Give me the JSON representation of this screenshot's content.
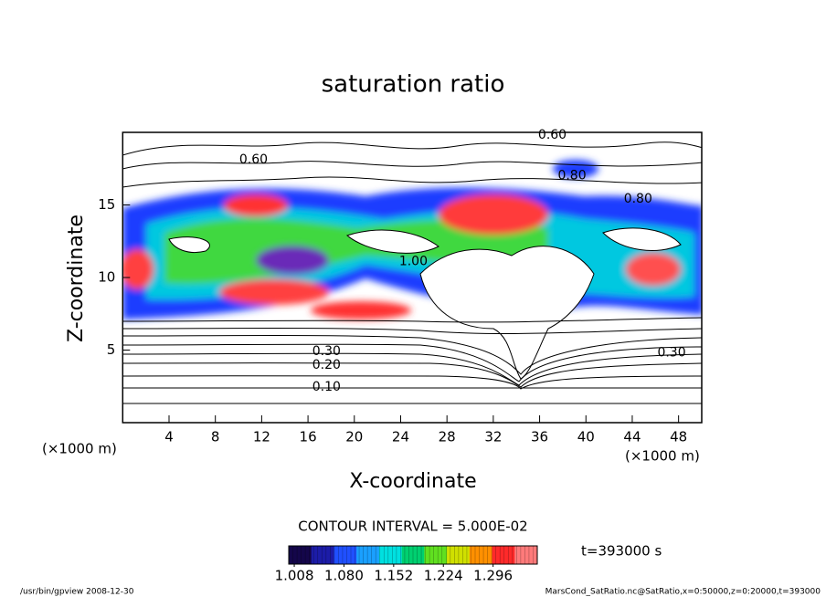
{
  "chart_data": {
    "type": "contour",
    "title": "saturation ratio",
    "x_label": "X-coordinate",
    "y_label": "Z-coordinate",
    "x_unit": "(×1000 m)",
    "y_unit": "(×1000 m)",
    "xlim": [
      0,
      50
    ],
    "ylim": [
      0,
      20
    ],
    "xticks": [
      4,
      8,
      12,
      16,
      20,
      24,
      28,
      32,
      36,
      40,
      44,
      48
    ],
    "yticks": [
      5,
      10,
      15
    ],
    "contour_interval": "CONTOUR INTERVAL = 5.000E-02",
    "contour_labels": [
      {
        "value": 0.6,
        "label": "0.60",
        "x": 11.3,
        "z": 18.1
      },
      {
        "value": 0.6,
        "label": "0.60",
        "x": 37.1,
        "z": 19.8
      },
      {
        "value": 0.8,
        "label": "0.80",
        "x": 38.8,
        "z": 17.0
      },
      {
        "value": 0.8,
        "label": "0.80",
        "x": 44.5,
        "z": 15.4
      },
      {
        "value": 1.0,
        "label": "1.00",
        "x": 25.1,
        "z": 11.1
      },
      {
        "value": 0.3,
        "label": "0.30",
        "x": 17.6,
        "z": 4.9
      },
      {
        "value": 0.3,
        "label": "0.30",
        "x": 47.4,
        "z": 4.8
      },
      {
        "value": 0.2,
        "label": "0.20",
        "x": 17.6,
        "z": 3.96
      },
      {
        "value": 0.1,
        "label": "0.10",
        "x": 17.6,
        "z": 2.45
      }
    ],
    "colorbar": {
      "lim": [
        1.0,
        1.36
      ],
      "ticks": [
        1.008,
        {
          "value": 1.08,
          "label": "1.080"
        },
        1.152,
        1.224,
        1.296
      ],
      "colors": [
        "#14064a",
        "#1c1ca8",
        "#2050ff",
        "#1aa0ff",
        "#00e0e0",
        "#00d070",
        "#60e020",
        "#d0e000",
        "#ff9000",
        "#ff2a2a",
        "#ff7a7a"
      ]
    },
    "time_label": "t=393000 s",
    "footer_left": "/usr/bin/gpview   2008-12-30",
    "footer_right": "MarsCond_SatRatio.nc@SatRatio,x=0:50000,z=0:20000,t=393000"
  }
}
